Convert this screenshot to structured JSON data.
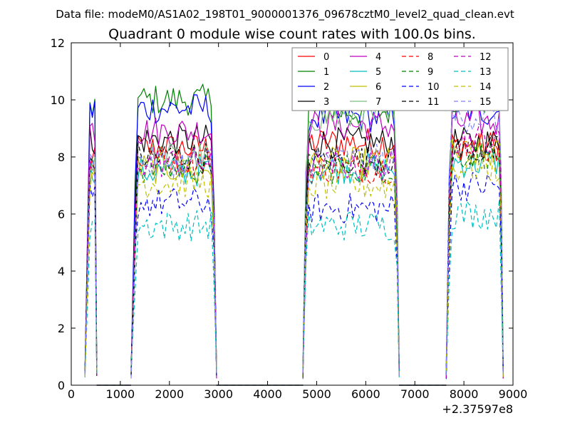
{
  "file_label": "Data file: modeM0/AS1A02_198T01_9000001376_09678cztM0_level2_quad_clean.evt",
  "chart_data": {
    "type": "line",
    "title": "Quadrant 0 module wise count rates with 100.0s bins.",
    "xlabel": "",
    "ylabel": "",
    "x_offset_label": "+2.37597e8",
    "xlim": [
      0,
      9000
    ],
    "ylim": [
      0,
      12
    ],
    "xticks": [
      0,
      1000,
      2000,
      3000,
      4000,
      5000,
      6000,
      7000,
      8000,
      9000
    ],
    "yticks": [
      0,
      2,
      4,
      6,
      8,
      10,
      12
    ],
    "legend_position": "top-right",
    "legend_columns": 4,
    "segments": [
      {
        "x": [
          280,
          380,
          430,
          480,
          520
        ]
      },
      {
        "x": [
          1220,
          1300,
          1360,
          1420,
          1480,
          1540,
          1600,
          1660,
          1720,
          1780,
          1840,
          1900,
          1960,
          2020,
          2080,
          2140,
          2200,
          2260,
          2320,
          2380,
          2440,
          2500,
          2560,
          2620,
          2680,
          2740,
          2790,
          2850,
          2910,
          2960
        ]
      },
      {
        "x": [
          4720,
          4780,
          4840,
          4900,
          4960,
          5020,
          5080,
          5140,
          5200,
          5260,
          5320,
          5380,
          5440,
          5500,
          5560,
          5620,
          5680,
          5740,
          5800,
          5860,
          5920,
          5980,
          6040,
          6100,
          6160,
          6220,
          6280,
          6340,
          6400,
          6460,
          6520,
          6580,
          6640,
          6680
        ]
      },
      {
        "x": [
          7640,
          7700,
          7760,
          7820,
          7880,
          7940,
          8000,
          8060,
          8120,
          8180,
          8240,
          8300,
          8360,
          8420,
          8480,
          8540,
          8600,
          8660,
          8720,
          8760,
          8800
        ]
      }
    ],
    "zero_runs": [
      [
        520,
        1220
      ],
      [
        2960,
        4720
      ],
      [
        6680,
        7640
      ]
    ],
    "series": [
      {
        "name": "0",
        "color": "#ff0000",
        "dashed": false,
        "levels": [
          7.8,
          8.3,
          8.5,
          8.4
        ]
      },
      {
        "name": "1",
        "color": "#008000",
        "dashed": false,
        "levels": [
          9.7,
          10.0,
          9.6,
          10.0
        ]
      },
      {
        "name": "2",
        "color": "#0000ff",
        "dashed": false,
        "levels": [
          9.6,
          9.7,
          9.4,
          9.6
        ]
      },
      {
        "name": "3",
        "color": "#000000",
        "dashed": false,
        "levels": [
          8.6,
          8.6,
          8.5,
          8.5
        ]
      },
      {
        "name": "4",
        "color": "#bf00bf",
        "dashed": false,
        "levels": [
          9.0,
          8.9,
          9.1,
          9.2
        ]
      },
      {
        "name": "5",
        "color": "#00bfbf",
        "dashed": false,
        "levels": [
          7.6,
          7.5,
          7.6,
          7.8
        ]
      },
      {
        "name": "6",
        "color": "#bfbf00",
        "dashed": false,
        "levels": [
          7.4,
          7.6,
          7.8,
          8.1
        ]
      },
      {
        "name": "7",
        "color": "#7fbf7f",
        "dashed": false,
        "levels": [
          7.9,
          8.0,
          9.4,
          10.3
        ]
      },
      {
        "name": "8",
        "color": "#ff0000",
        "dashed": true,
        "levels": [
          7.8,
          7.9,
          7.6,
          8.4
        ]
      },
      {
        "name": "9",
        "color": "#008000",
        "dashed": true,
        "levels": [
          7.5,
          7.6,
          7.6,
          8.1
        ]
      },
      {
        "name": "10",
        "color": "#0000ff",
        "dashed": true,
        "levels": [
          6.5,
          6.4,
          6.2,
          7.0
        ]
      },
      {
        "name": "11",
        "color": "#000000",
        "dashed": true,
        "levels": [
          7.9,
          8.0,
          7.9,
          8.2
        ]
      },
      {
        "name": "12",
        "color": "#bf00bf",
        "dashed": true,
        "levels": [
          7.6,
          7.8,
          7.7,
          8.6
        ]
      },
      {
        "name": "13",
        "color": "#00bfbf",
        "dashed": true,
        "levels": [
          5.7,
          5.6,
          5.6,
          6.0
        ]
      },
      {
        "name": "14",
        "color": "#bfbf00",
        "dashed": true,
        "levels": [
          7.2,
          7.1,
          7.0,
          7.6
        ]
      },
      {
        "name": "15",
        "color": "#7f7fff",
        "dashed": true,
        "levels": [
          7.7,
          7.8,
          7.9,
          9.4
        ]
      }
    ]
  }
}
